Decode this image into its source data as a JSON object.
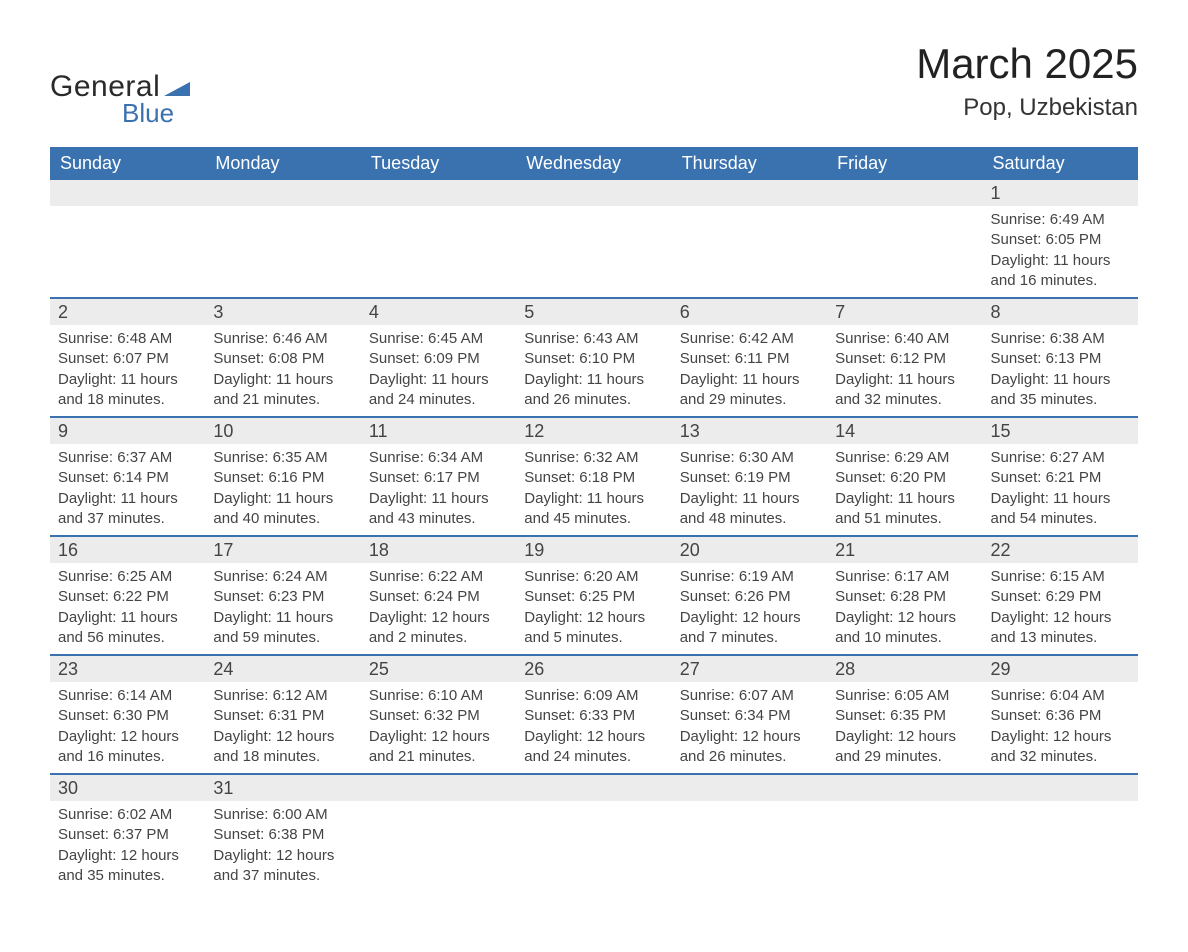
{
  "logo": {
    "text1": "General",
    "text2": "Blue",
    "shape_color": "#3a72b0"
  },
  "title": "March 2025",
  "location": "Pop, Uzbekistan",
  "colors": {
    "header_bg": "#3a72b0",
    "header_text": "#ffffff",
    "daynum_bg": "#ececec",
    "row_border": "#3a72b0",
    "body_text": "#444444",
    "page_bg": "#ffffff"
  },
  "typography": {
    "title_fontsize": 42,
    "location_fontsize": 24,
    "weekday_fontsize": 18,
    "daynum_fontsize": 18,
    "body_fontsize": 15
  },
  "weekdays": [
    "Sunday",
    "Monday",
    "Tuesday",
    "Wednesday",
    "Thursday",
    "Friday",
    "Saturday"
  ],
  "weeks": [
    [
      null,
      null,
      null,
      null,
      null,
      null,
      {
        "n": "1",
        "sunrise": "6:49 AM",
        "sunset": "6:05 PM",
        "daylight": "11 hours and 16 minutes."
      }
    ],
    [
      {
        "n": "2",
        "sunrise": "6:48 AM",
        "sunset": "6:07 PM",
        "daylight": "11 hours and 18 minutes."
      },
      {
        "n": "3",
        "sunrise": "6:46 AM",
        "sunset": "6:08 PM",
        "daylight": "11 hours and 21 minutes."
      },
      {
        "n": "4",
        "sunrise": "6:45 AM",
        "sunset": "6:09 PM",
        "daylight": "11 hours and 24 minutes."
      },
      {
        "n": "5",
        "sunrise": "6:43 AM",
        "sunset": "6:10 PM",
        "daylight": "11 hours and 26 minutes."
      },
      {
        "n": "6",
        "sunrise": "6:42 AM",
        "sunset": "6:11 PM",
        "daylight": "11 hours and 29 minutes."
      },
      {
        "n": "7",
        "sunrise": "6:40 AM",
        "sunset": "6:12 PM",
        "daylight": "11 hours and 32 minutes."
      },
      {
        "n": "8",
        "sunrise": "6:38 AM",
        "sunset": "6:13 PM",
        "daylight": "11 hours and 35 minutes."
      }
    ],
    [
      {
        "n": "9",
        "sunrise": "6:37 AM",
        "sunset": "6:14 PM",
        "daylight": "11 hours and 37 minutes."
      },
      {
        "n": "10",
        "sunrise": "6:35 AM",
        "sunset": "6:16 PM",
        "daylight": "11 hours and 40 minutes."
      },
      {
        "n": "11",
        "sunrise": "6:34 AM",
        "sunset": "6:17 PM",
        "daylight": "11 hours and 43 minutes."
      },
      {
        "n": "12",
        "sunrise": "6:32 AM",
        "sunset": "6:18 PM",
        "daylight": "11 hours and 45 minutes."
      },
      {
        "n": "13",
        "sunrise": "6:30 AM",
        "sunset": "6:19 PM",
        "daylight": "11 hours and 48 minutes."
      },
      {
        "n": "14",
        "sunrise": "6:29 AM",
        "sunset": "6:20 PM",
        "daylight": "11 hours and 51 minutes."
      },
      {
        "n": "15",
        "sunrise": "6:27 AM",
        "sunset": "6:21 PM",
        "daylight": "11 hours and 54 minutes."
      }
    ],
    [
      {
        "n": "16",
        "sunrise": "6:25 AM",
        "sunset": "6:22 PM",
        "daylight": "11 hours and 56 minutes."
      },
      {
        "n": "17",
        "sunrise": "6:24 AM",
        "sunset": "6:23 PM",
        "daylight": "11 hours and 59 minutes."
      },
      {
        "n": "18",
        "sunrise": "6:22 AM",
        "sunset": "6:24 PM",
        "daylight": "12 hours and 2 minutes."
      },
      {
        "n": "19",
        "sunrise": "6:20 AM",
        "sunset": "6:25 PM",
        "daylight": "12 hours and 5 minutes."
      },
      {
        "n": "20",
        "sunrise": "6:19 AM",
        "sunset": "6:26 PM",
        "daylight": "12 hours and 7 minutes."
      },
      {
        "n": "21",
        "sunrise": "6:17 AM",
        "sunset": "6:28 PM",
        "daylight": "12 hours and 10 minutes."
      },
      {
        "n": "22",
        "sunrise": "6:15 AM",
        "sunset": "6:29 PM",
        "daylight": "12 hours and 13 minutes."
      }
    ],
    [
      {
        "n": "23",
        "sunrise": "6:14 AM",
        "sunset": "6:30 PM",
        "daylight": "12 hours and 16 minutes."
      },
      {
        "n": "24",
        "sunrise": "6:12 AM",
        "sunset": "6:31 PM",
        "daylight": "12 hours and 18 minutes."
      },
      {
        "n": "25",
        "sunrise": "6:10 AM",
        "sunset": "6:32 PM",
        "daylight": "12 hours and 21 minutes."
      },
      {
        "n": "26",
        "sunrise": "6:09 AM",
        "sunset": "6:33 PM",
        "daylight": "12 hours and 24 minutes."
      },
      {
        "n": "27",
        "sunrise": "6:07 AM",
        "sunset": "6:34 PM",
        "daylight": "12 hours and 26 minutes."
      },
      {
        "n": "28",
        "sunrise": "6:05 AM",
        "sunset": "6:35 PM",
        "daylight": "12 hours and 29 minutes."
      },
      {
        "n": "29",
        "sunrise": "6:04 AM",
        "sunset": "6:36 PM",
        "daylight": "12 hours and 32 minutes."
      }
    ],
    [
      {
        "n": "30",
        "sunrise": "6:02 AM",
        "sunset": "6:37 PM",
        "daylight": "12 hours and 35 minutes."
      },
      {
        "n": "31",
        "sunrise": "6:00 AM",
        "sunset": "6:38 PM",
        "daylight": "12 hours and 37 minutes."
      },
      null,
      null,
      null,
      null,
      null
    ]
  ],
  "labels": {
    "sunrise": "Sunrise:",
    "sunset": "Sunset:",
    "daylight": "Daylight:"
  }
}
